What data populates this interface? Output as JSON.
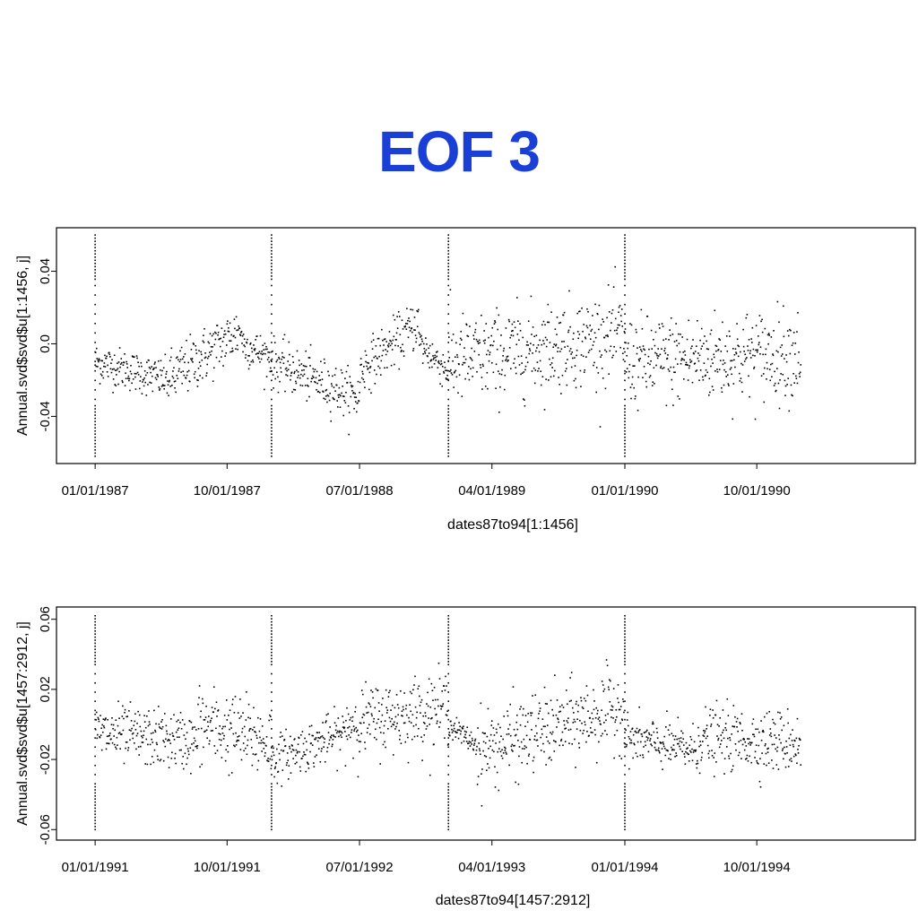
{
  "title": "EOF 3",
  "title_color": "#1a3fd6",
  "chart_data": [
    {
      "type": "scatter",
      "title": "EOF 3",
      "xlabel": "dates87to94[1:1456]",
      "ylabel": "Annual.svd$svd$u[1:1456, j]",
      "x_ticks": [
        "01/01/1987",
        "10/01/1987",
        "07/01/1988",
        "04/01/1989",
        "01/01/1990",
        "10/01/1990"
      ],
      "y_ticks": [
        "-0.04",
        "0.0",
        "0.04"
      ],
      "y_tick_values": [
        -0.04,
        0.0,
        0.04
      ],
      "xlim": [
        "1986-10-13",
        "1991-08-25"
      ],
      "ylim": [
        -0.066,
        0.064
      ],
      "x_start": "1987-01-01",
      "x_end": "1990-12-31",
      "grid": false,
      "legend": "none",
      "point_color": "#000000",
      "gap_dates": [
        "1987-01-01",
        "1988-01-01",
        "1989-01-01",
        "1990-01-01"
      ],
      "gap_low": -0.062,
      "gap_high": 0.06,
      "segments": [
        {
          "from": "1987-01-01",
          "to": "1987-06-01",
          "start": -0.01,
          "end": -0.02,
          "noise": 0.01
        },
        {
          "from": "1987-06-01",
          "to": "1987-11-01",
          "start": -0.02,
          "end": 0.008,
          "noise": 0.014
        },
        {
          "from": "1987-11-01",
          "to": "1988-01-01",
          "start": 0.0,
          "end": -0.008,
          "noise": 0.01
        },
        {
          "from": "1988-01-01",
          "to": "1988-07-01",
          "start": -0.01,
          "end": -0.03,
          "noise": 0.012
        },
        {
          "from": "1988-07-01",
          "to": "1988-11-01",
          "start": -0.015,
          "end": 0.012,
          "noise": 0.012
        },
        {
          "from": "1988-11-01",
          "to": "1989-01-01",
          "start": 0.0,
          "end": -0.015,
          "noise": 0.01
        },
        {
          "from": "1989-01-01",
          "to": "1989-12-31",
          "start": -0.01,
          "end": 0.005,
          "noise": 0.022
        },
        {
          "from": "1990-01-01",
          "to": "1990-12-31",
          "start": -0.01,
          "end": -0.005,
          "noise": 0.022
        }
      ]
    },
    {
      "type": "scatter",
      "title": "",
      "xlabel": "dates87to94[1457:2912]",
      "ylabel": "Annual.svd$svd$u[1457:2912, j]",
      "x_ticks": [
        "01/01/1991",
        "10/01/1991",
        "07/01/1992",
        "04/01/1993",
        "01/01/1994",
        "10/01/1994"
      ],
      "y_ticks": [
        "-0.06",
        "-0.02",
        "0.02",
        "0.06"
      ],
      "y_tick_values": [
        -0.06,
        -0.02,
        0.02,
        0.06
      ],
      "xlim": [
        "1990-10-13",
        "1995-08-25"
      ],
      "ylim": [
        -0.066,
        0.067
      ],
      "x_start": "1991-01-01",
      "x_end": "1994-12-31",
      "grid": false,
      "legend": "none",
      "point_color": "#000000",
      "gap_dates": [
        "1991-01-01",
        "1992-01-01",
        "1993-01-01",
        "1994-01-01"
      ],
      "gap_low": -0.06,
      "gap_high": 0.062,
      "segments": [
        {
          "from": "1991-01-01",
          "to": "1991-08-01",
          "start": -0.005,
          "end": -0.01,
          "noise": 0.015
        },
        {
          "from": "1991-08-01",
          "to": "1992-01-01",
          "start": 0.0,
          "end": -0.01,
          "noise": 0.02
        },
        {
          "from": "1992-01-01",
          "to": "1992-06-01",
          "start": -0.02,
          "end": -0.005,
          "noise": 0.012
        },
        {
          "from": "1992-06-01",
          "to": "1993-01-01",
          "start": 0.0,
          "end": 0.01,
          "noise": 0.018
        },
        {
          "from": "1993-01-01",
          "to": "1993-03-01",
          "start": 0.0,
          "end": -0.012,
          "noise": 0.006
        },
        {
          "from": "1993-03-01",
          "to": "1993-12-31",
          "start": -0.015,
          "end": 0.01,
          "noise": 0.02
        },
        {
          "from": "1994-01-01",
          "to": "1994-06-01",
          "start": -0.008,
          "end": -0.015,
          "noise": 0.012
        },
        {
          "from": "1994-06-01",
          "to": "1994-12-31",
          "start": -0.008,
          "end": -0.01,
          "noise": 0.016
        }
      ]
    }
  ]
}
